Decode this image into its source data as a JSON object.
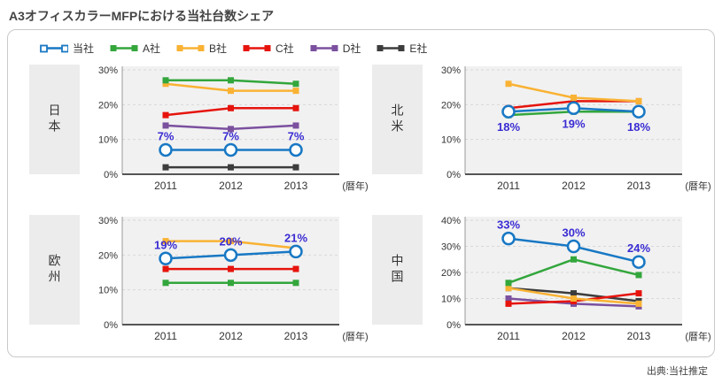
{
  "title": "A3オフィスカラーMFPにおける当社台数シェア",
  "source_note": "出典:当社推定",
  "colors": {
    "ours": "#1878C4",
    "company_a": "#33A63C",
    "company_b": "#F9B233",
    "company_c": "#E6140D",
    "company_d": "#7B509F",
    "company_e": "#3C3C3C",
    "data_label": "#3A2CD3",
    "plot_bg": "#F1F1F1",
    "gridline": "#D8D8D8",
    "axis_y": "#999999",
    "axis_x": "#555555",
    "region_bg": "#ECECEC"
  },
  "legend": [
    {
      "label": "当社",
      "color": "#1878C4",
      "marker": "open-square"
    },
    {
      "label": "A社",
      "color": "#33A63C",
      "marker": "square"
    },
    {
      "label": "B社",
      "color": "#F9B233",
      "marker": "square"
    },
    {
      "label": "C社",
      "color": "#E6140D",
      "marker": "square"
    },
    {
      "label": "D社",
      "color": "#7B509F",
      "marker": "square"
    },
    {
      "label": "E社",
      "color": "#3C3C3C",
      "marker": "square"
    }
  ],
  "chart_data": [
    {
      "type": "line",
      "id": "japan",
      "region": "日本",
      "categories": [
        "2011",
        "2012",
        "2013"
      ],
      "xnote": "(暦年)",
      "ylim": [
        0,
        30
      ],
      "ytick_step": 10,
      "grid": true,
      "label_position": "above",
      "series": [
        {
          "name": "当社",
          "values": [
            7,
            7,
            7
          ],
          "labels": [
            "7%",
            "7%",
            "7%"
          ]
        },
        {
          "name": "A社",
          "values": [
            27,
            27,
            26
          ]
        },
        {
          "name": "B社",
          "values": [
            26,
            24,
            24
          ]
        },
        {
          "name": "C社",
          "values": [
            17,
            19,
            19
          ]
        },
        {
          "name": "D社",
          "values": [
            14,
            13,
            14
          ]
        },
        {
          "name": "E社",
          "values": [
            2,
            2,
            2
          ]
        }
      ]
    },
    {
      "type": "line",
      "id": "north-america",
      "region": "北米",
      "categories": [
        "2011",
        "2012",
        "2013"
      ],
      "xnote": "(暦年)",
      "ylim": [
        0,
        30
      ],
      "ytick_step": 10,
      "grid": true,
      "label_position": "below",
      "series": [
        {
          "name": "当社",
          "values": [
            18,
            19,
            18
          ],
          "labels": [
            "18%",
            "19%",
            "18%"
          ]
        },
        {
          "name": "A社",
          "values": [
            17,
            18,
            18
          ]
        },
        {
          "name": "B社",
          "values": [
            26,
            22,
            21
          ]
        },
        {
          "name": "C社",
          "values": [
            19,
            21,
            21
          ]
        }
      ]
    },
    {
      "type": "line",
      "id": "europe",
      "region": "欧州",
      "categories": [
        "2011",
        "2012",
        "2013"
      ],
      "xnote": "(暦年)",
      "ylim": [
        0,
        30
      ],
      "ytick_step": 10,
      "grid": true,
      "label_position": "above",
      "series": [
        {
          "name": "当社",
          "values": [
            19,
            20,
            21
          ],
          "labels": [
            "19%",
            "20%",
            "21%"
          ]
        },
        {
          "name": "A社",
          "values": [
            12,
            12,
            12
          ]
        },
        {
          "name": "B社",
          "values": [
            24,
            24,
            22
          ]
        },
        {
          "name": "C社",
          "values": [
            16,
            16,
            16
          ]
        }
      ]
    },
    {
      "type": "line",
      "id": "china",
      "region": "中国",
      "categories": [
        "2011",
        "2012",
        "2013"
      ],
      "xnote": "(暦年)",
      "ylim": [
        0,
        40
      ],
      "ytick_step": 10,
      "grid": true,
      "label_position": "above",
      "series": [
        {
          "name": "当社",
          "values": [
            33,
            30,
            24
          ],
          "labels": [
            "33%",
            "30%",
            "24%"
          ]
        },
        {
          "name": "A社",
          "values": [
            16,
            25,
            19
          ]
        },
        {
          "name": "B社",
          "values": [
            14,
            10,
            8
          ]
        },
        {
          "name": "C社",
          "values": [
            8,
            9,
            12
          ]
        },
        {
          "name": "D社",
          "values": [
            10,
            8,
            7
          ]
        },
        {
          "name": "E社",
          "values": [
            14,
            12,
            9
          ]
        }
      ]
    }
  ]
}
